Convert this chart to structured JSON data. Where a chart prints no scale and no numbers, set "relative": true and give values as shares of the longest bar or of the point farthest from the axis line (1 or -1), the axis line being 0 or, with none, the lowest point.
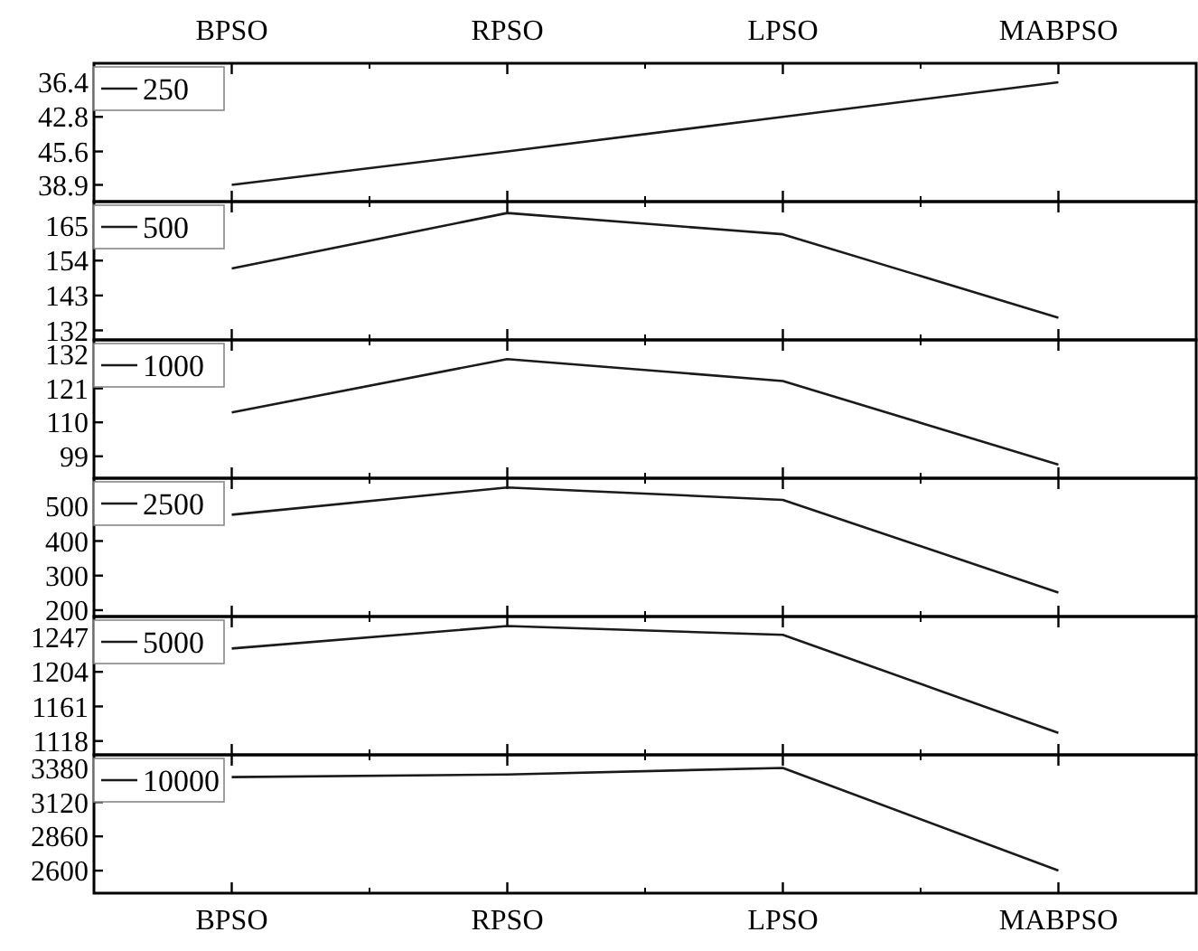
{
  "chart_data": [
    {
      "type": "line",
      "categories": [
        "BPSO",
        "RPSO",
        "LPSO",
        "MABPSO"
      ],
      "series": [
        {
          "name": "250",
          "color": "#1a1a1a",
          "values": [
            0.14,
            0.42,
            0.71,
            1
          ]
        }
      ],
      "relative": true,
      "annotations": [
        "38.9",
        "45.6",
        "42.8",
        "36.4"
      ],
      "legend": "top left"
    },
    {
      "type": "line",
      "categories": [
        null,
        null,
        null,
        null
      ],
      "series": [
        {
          "name": "500",
          "color": "#1a1a1a",
          "values": [
            151.5,
            169,
            162.3,
            136
          ]
        }
      ],
      "ylim": [
        129,
        172.6
      ],
      "yticks": [
        132,
        143,
        154,
        165
      ],
      "legend": "top left",
      "tick_labels": "y"
    },
    {
      "type": "line",
      "categories": [
        null,
        null,
        null,
        null
      ],
      "series": [
        {
          "name": "1000",
          "color": "#1a1a1a",
          "values": [
            113.2,
            130.5,
            123.4,
            96.3
          ]
        }
      ],
      "ylim": [
        91.9,
        136.7
      ],
      "yticks": [
        99,
        110,
        121,
        132
      ],
      "legend": "top left",
      "tick_labels": "y"
    },
    {
      "type": "line",
      "categories": [
        null,
        null,
        null,
        null
      ],
      "series": [
        {
          "name": "2500",
          "color": "#1a1a1a",
          "values": [
            476,
            555,
            519,
            251
          ]
        }
      ],
      "ylim": [
        181.6,
        581.6
      ],
      "yticks": [
        200,
        300,
        400,
        500
      ],
      "legend": "top left",
      "tick_labels": "y"
    },
    {
      "type": "line",
      "categories": [
        null,
        null,
        null,
        null
      ],
      "series": [
        {
          "name": "5000",
          "color": "#1a1a1a",
          "values": [
            1233,
            1261,
            1250,
            1128
          ]
        }
      ],
      "ylim": [
        1100.8,
        1272.8
      ],
      "yticks": [
        1118,
        1161,
        1204,
        1247
      ],
      "legend": "top left",
      "tick_labels": "y"
    },
    {
      "type": "line",
      "categories": [
        "BPSO",
        "RPSO",
        "LPSO",
        "MABPSO"
      ],
      "series": [
        {
          "name": "10000",
          "color": "#1a1a1a",
          "values": [
            3310,
            3330,
            3380,
            2600
          ]
        }
      ],
      "ylim": [
        2429,
        3479
      ],
      "yticks": [
        2600,
        2860,
        3120,
        3380
      ],
      "legend": "top left"
    }
  ]
}
